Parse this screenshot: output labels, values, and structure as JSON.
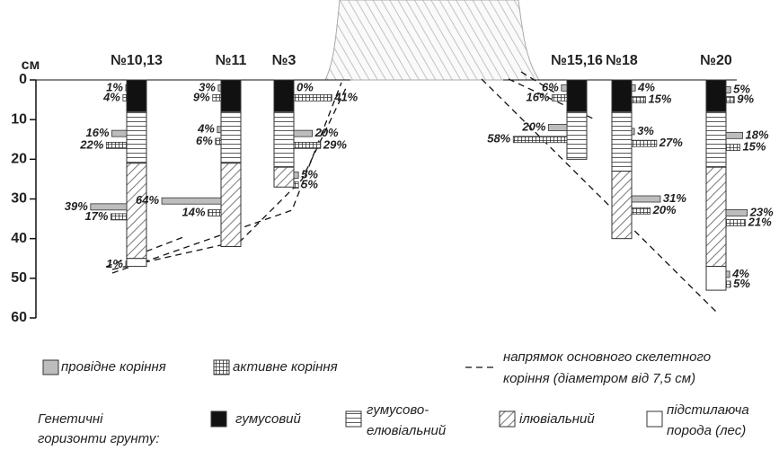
{
  "chart_data": {
    "type": "soil-root-profile",
    "y_unit": "см",
    "ylim": [
      0,
      60
    ],
    "yticks": [
      0,
      10,
      20,
      30,
      40,
      50,
      60
    ],
    "profiles": [
      {
        "name": "№10,13",
        "horizons": [
          {
            "type": "humus",
            "from": 0,
            "to": 8
          },
          {
            "type": "humus-eluvial",
            "from": 8,
            "to": 21
          },
          {
            "type": "illuvial",
            "from": 21,
            "to": 45
          },
          {
            "type": "parent-rock",
            "from": 45,
            "to": 47
          }
        ],
        "conducting": [
          {
            "depth": 2,
            "value": 1,
            "label": "1%"
          },
          {
            "depth": 13.5,
            "value": 16,
            "label": "16%"
          },
          {
            "depth": 32,
            "value": 39,
            "label": "39%"
          },
          {
            "depth": 46.5,
            "value": 1,
            "label": "1%"
          }
        ],
        "active": [
          {
            "depth": 4.5,
            "value": 4,
            "label": "4%"
          },
          {
            "depth": 16.5,
            "value": 22,
            "label": "22%"
          },
          {
            "depth": 34.5,
            "value": 17,
            "label": "17%"
          }
        ]
      },
      {
        "name": "№11",
        "horizons": [
          {
            "type": "humus",
            "from": 0,
            "to": 8
          },
          {
            "type": "humus-eluvial",
            "from": 8,
            "to": 21
          },
          {
            "type": "illuvial",
            "from": 21,
            "to": 42
          }
        ],
        "conducting": [
          {
            "depth": 2,
            "value": 3,
            "label": "3%"
          },
          {
            "depth": 12.5,
            "value": 4,
            "label": "4%"
          },
          {
            "depth": 30.5,
            "value": 64,
            "label": "64%"
          }
        ],
        "active": [
          {
            "depth": 4.5,
            "value": 9,
            "label": "9%"
          },
          {
            "depth": 15.5,
            "value": 6,
            "label": "6%"
          },
          {
            "depth": 33.5,
            "value": 14,
            "label": "14%"
          }
        ]
      },
      {
        "name": "№3",
        "horizons": [
          {
            "type": "humus",
            "from": 0,
            "to": 8
          },
          {
            "type": "humus-eluvial",
            "from": 8,
            "to": 22
          },
          {
            "type": "illuvial",
            "from": 22,
            "to": 27
          }
        ],
        "conducting": [
          {
            "depth": 2,
            "value": 0,
            "label": "0%"
          },
          {
            "depth": 13.5,
            "value": 20,
            "label": "20%"
          },
          {
            "depth": 24,
            "value": 5,
            "label": "5%"
          }
        ],
        "active": [
          {
            "depth": 4.5,
            "value": 41,
            "label": "41%"
          },
          {
            "depth": 16.5,
            "value": 29,
            "label": "29%"
          },
          {
            "depth": 26.5,
            "value": 5,
            "label": "5%"
          }
        ]
      },
      {
        "name": "№15,16",
        "horizons": [
          {
            "type": "humus",
            "from": 0,
            "to": 8
          },
          {
            "type": "humus-eluvial",
            "from": 8,
            "to": 20
          }
        ],
        "conducting": [
          {
            "depth": 2,
            "value": 6,
            "label": "6%"
          },
          {
            "depth": 12,
            "value": 20,
            "label": "20%"
          }
        ],
        "active": [
          {
            "depth": 4.5,
            "value": 16,
            "label": "16%"
          },
          {
            "depth": 15,
            "value": 58,
            "label": "58%"
          }
        ]
      },
      {
        "name": "№18",
        "horizons": [
          {
            "type": "humus",
            "from": 0,
            "to": 8
          },
          {
            "type": "humus-eluvial",
            "from": 8,
            "to": 23
          },
          {
            "type": "illuvial",
            "from": 23,
            "to": 40
          }
        ],
        "conducting": [
          {
            "depth": 2,
            "value": 4,
            "label": "4%"
          },
          {
            "depth": 13,
            "value": 3,
            "label": "3%"
          },
          {
            "depth": 30,
            "value": 31,
            "label": "31%"
          }
        ],
        "active": [
          {
            "depth": 5,
            "value": 15,
            "label": "15%"
          },
          {
            "depth": 16,
            "value": 27,
            "label": "27%"
          },
          {
            "depth": 33,
            "value": 20,
            "label": "20%"
          }
        ]
      },
      {
        "name": "№20",
        "horizons": [
          {
            "type": "humus",
            "from": 0,
            "to": 8
          },
          {
            "type": "humus-eluvial",
            "from": 8,
            "to": 22
          },
          {
            "type": "illuvial",
            "from": 22,
            "to": 47
          },
          {
            "type": "parent-rock",
            "from": 47,
            "to": 53
          }
        ],
        "conducting": [
          {
            "depth": 2.5,
            "value": 5,
            "label": "5%"
          },
          {
            "depth": 14,
            "value": 18,
            "label": "18%"
          },
          {
            "depth": 33.5,
            "value": 23,
            "label": "23%"
          },
          {
            "depth": 49,
            "value": 4,
            "label": "4%"
          }
        ],
        "active": [
          {
            "depth": 5,
            "value": 9,
            "label": "9%"
          },
          {
            "depth": 17,
            "value": 15,
            "label": "15%"
          },
          {
            "depth": 36,
            "value": 21,
            "label": "21%"
          },
          {
            "depth": 51.5,
            "value": 5,
            "label": "5%"
          }
        ]
      }
    ],
    "legend": {
      "conducting": "провідне коріння",
      "active": "активне коріння",
      "skeletal": [
        "напрямок основного скелетного",
        "коріння (діаметром від 7,5 см)"
      ],
      "horizons_title": [
        "Генетичні",
        "горизонти грунту:"
      ],
      "humus": [
        "гумусовий"
      ],
      "humus-eluvial": [
        "гумусово-",
        "елювіальний"
      ],
      "illuvial": [
        "ілювіальний"
      ],
      "parent-rock": [
        "підстилаюча",
        "порода (лес)"
      ]
    }
  }
}
